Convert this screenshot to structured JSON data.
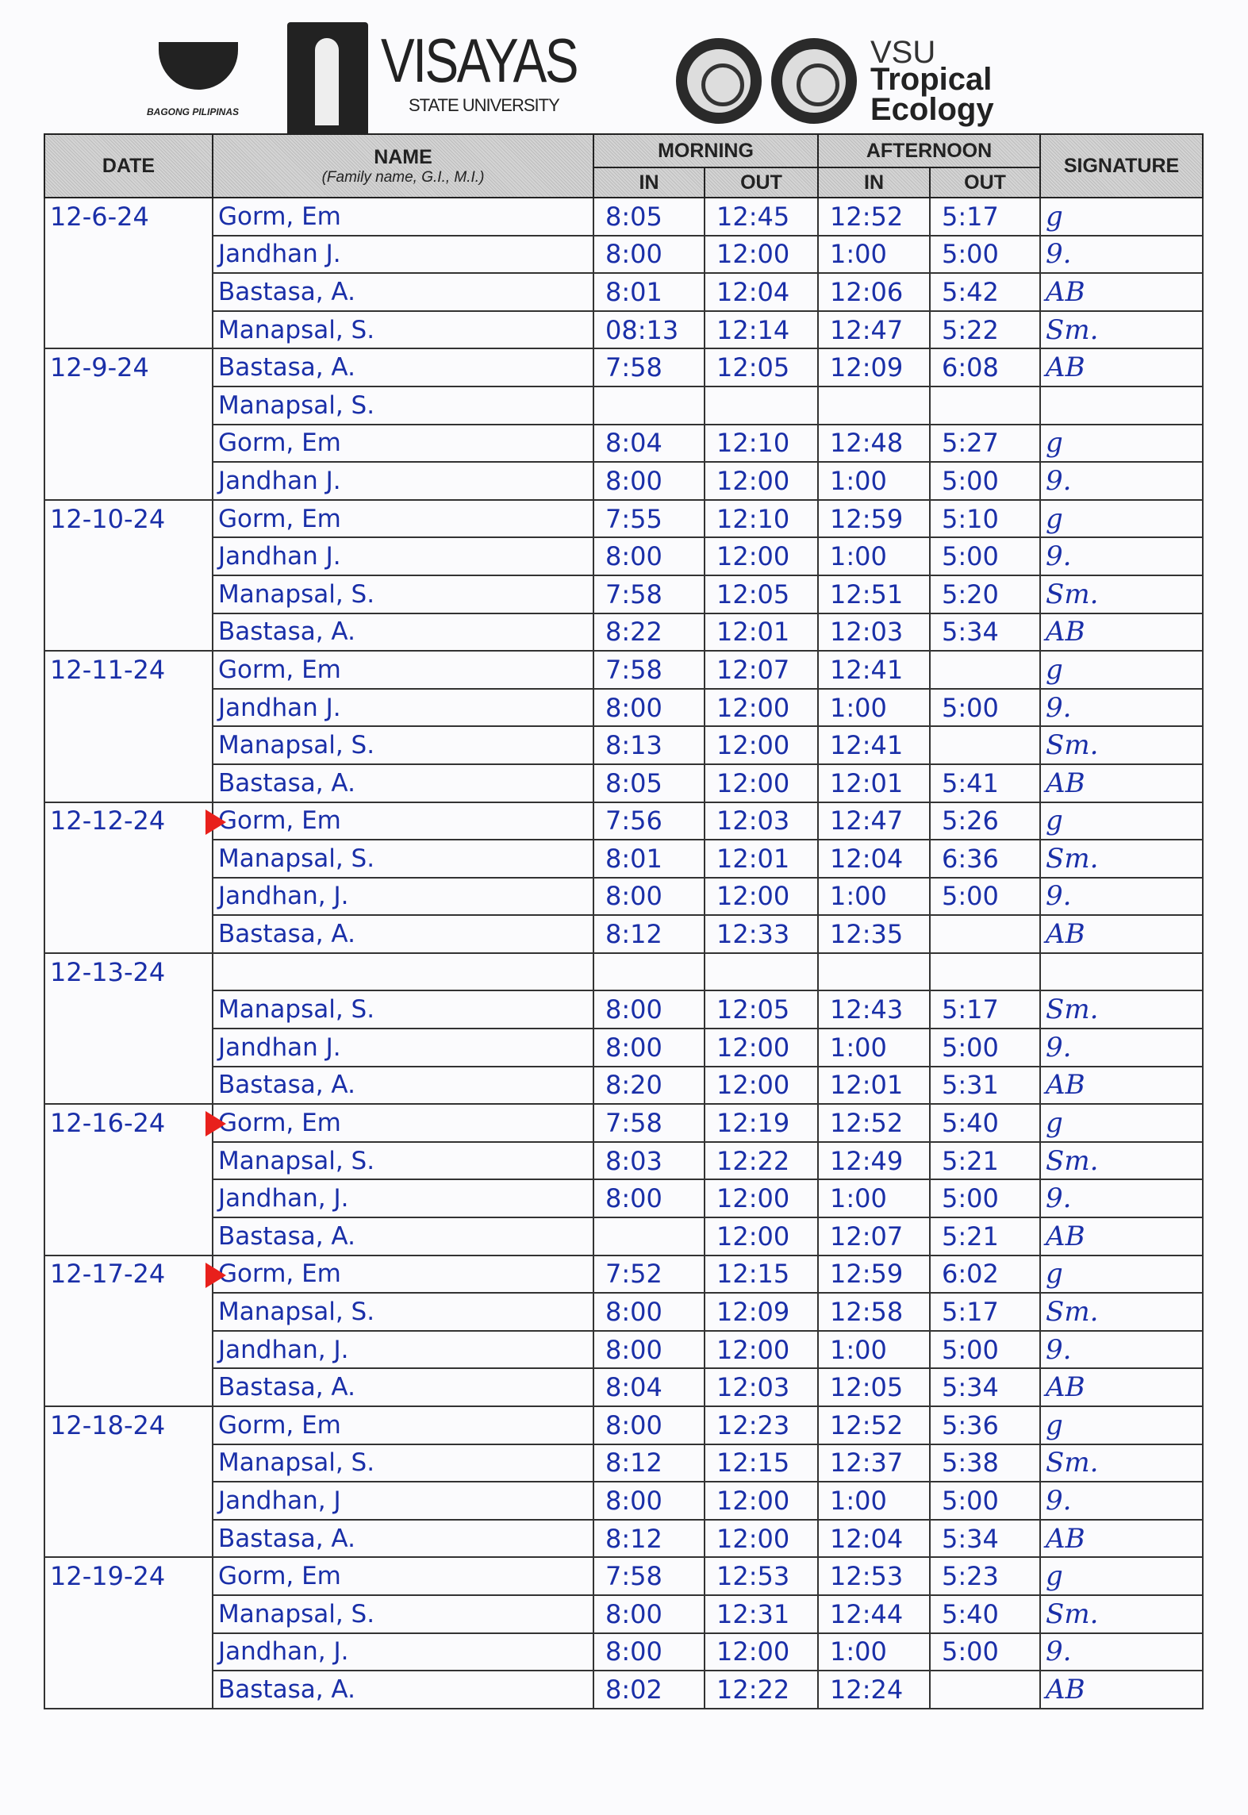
{
  "header": {
    "logo_left_text": "BAGONG PILIPINAS",
    "university_name": "VISAYAS",
    "university_sub": "STATE UNIVERSITY",
    "program_line1": "VSU",
    "program_line2": "Tropical",
    "program_line3": "Ecology"
  },
  "table": {
    "columns": {
      "date": "DATE",
      "name": "NAME",
      "name_sub": "(Family name, G.I., M.I.)",
      "morning": "MORNING",
      "afternoon": "AFTERNOON",
      "in": "IN",
      "out": "OUT",
      "signature": "SIGNATURE"
    },
    "marker_color": "#e8201c",
    "ink_color": "#1a2fa8",
    "rows": [
      {
        "date": "12-6-24",
        "name": "Gorm, Em",
        "am_in": "8:05",
        "am_out": "12:45",
        "pm_in": "12:52",
        "pm_out": "5:17",
        "sig": "g",
        "marked": false
      },
      {
        "date": "",
        "name": "Jandhan J.",
        "am_in": "8:00",
        "am_out": "12:00",
        "pm_in": "1:00",
        "pm_out": "5:00",
        "sig": "9."
      },
      {
        "date": "",
        "name": "Bastasa, A.",
        "am_in": "8:01",
        "am_out": "12:04",
        "pm_in": "12:06",
        "pm_out": "5:42",
        "sig": "AB"
      },
      {
        "date": "",
        "name": "Manapsal, S.",
        "am_in": "08:13",
        "am_out": "12:14",
        "pm_in": "12:47",
        "pm_out": "5:22",
        "sig": "Sm."
      },
      {
        "date": "12-9-24",
        "name": "Bastasa, A.",
        "am_in": "7:58",
        "am_out": "12:05",
        "pm_in": "12:09",
        "pm_out": "6:08",
        "sig": "AB"
      },
      {
        "date": "",
        "name": "Manapsal, S.",
        "am_in": "",
        "am_out": "",
        "pm_in": "",
        "pm_out": "",
        "sig": ""
      },
      {
        "date": "",
        "name": "Gorm, Em",
        "am_in": "8:04",
        "am_out": "12:10",
        "pm_in": "12:48",
        "pm_out": "5:27",
        "sig": "g"
      },
      {
        "date": "",
        "name": "Jandhan J.",
        "am_in": "8:00",
        "am_out": "12:00",
        "pm_in": "1:00",
        "pm_out": "5:00",
        "sig": "9."
      },
      {
        "date": "12-10-24",
        "name": "Gorm, Em",
        "am_in": "7:55",
        "am_out": "12:10",
        "pm_in": "12:59",
        "pm_out": "5:10",
        "sig": "g"
      },
      {
        "date": "",
        "name": "Jandhan J.",
        "am_in": "8:00",
        "am_out": "12:00",
        "pm_in": "1:00",
        "pm_out": "5:00",
        "sig": "9."
      },
      {
        "date": "",
        "name": "Manapsal, S.",
        "am_in": "7:58",
        "am_out": "12:05",
        "pm_in": "12:51",
        "pm_out": "5:20",
        "sig": "Sm."
      },
      {
        "date": "",
        "name": "Bastasa, A.",
        "am_in": "8:22",
        "am_out": "12:01",
        "pm_in": "12:03",
        "pm_out": "5:34",
        "sig": "AB"
      },
      {
        "date": "12-11-24",
        "name": "Gorm, Em",
        "am_in": "7:58",
        "am_out": "12:07",
        "pm_in": "12:41",
        "pm_out": "",
        "sig": "g"
      },
      {
        "date": "",
        "name": "Jandhan J.",
        "am_in": "8:00",
        "am_out": "12:00",
        "pm_in": "1:00",
        "pm_out": "5:00",
        "sig": "9."
      },
      {
        "date": "",
        "name": "Manapsal, S.",
        "am_in": "8:13",
        "am_out": "12:00",
        "pm_in": "12:41",
        "pm_out": "",
        "sig": "Sm."
      },
      {
        "date": "",
        "name": "Bastasa, A.",
        "am_in": "8:05",
        "am_out": "12:00",
        "pm_in": "12:01",
        "pm_out": "5:41",
        "sig": "AB"
      },
      {
        "date": "12-12-24",
        "name": "Gorm, Em",
        "am_in": "7:56",
        "am_out": "12:03",
        "pm_in": "12:47",
        "pm_out": "5:26",
        "sig": "g",
        "marked": true
      },
      {
        "date": "",
        "name": "Manapsal, S.",
        "am_in": "8:01",
        "am_out": "12:01",
        "pm_in": "12:04",
        "pm_out": "6:36",
        "sig": "Sm."
      },
      {
        "date": "",
        "name": "Jandhan, J.",
        "am_in": "8:00",
        "am_out": "12:00",
        "pm_in": "1:00",
        "pm_out": "5:00",
        "sig": "9."
      },
      {
        "date": "",
        "name": "Bastasa, A.",
        "am_in": "8:12",
        "am_out": "12:33",
        "pm_in": "12:35",
        "pm_out": "",
        "sig": "AB"
      },
      {
        "date": "12-13-24",
        "name": "",
        "am_in": "",
        "am_out": "",
        "pm_in": "",
        "pm_out": "",
        "sig": ""
      },
      {
        "date": "",
        "name": "Manapsal, S.",
        "am_in": "8:00",
        "am_out": "12:05",
        "pm_in": "12:43",
        "pm_out": "5:17",
        "sig": "Sm."
      },
      {
        "date": "",
        "name": "Jandhan J.",
        "am_in": "8:00",
        "am_out": "12:00",
        "pm_in": "1:00",
        "pm_out": "5:00",
        "sig": "9."
      },
      {
        "date": "",
        "name": "Bastasa, A.",
        "am_in": "8:20",
        "am_out": "12:00",
        "pm_in": "12:01",
        "pm_out": "5:31",
        "sig": "AB"
      },
      {
        "date": "12-16-24",
        "name": "Gorm, Em",
        "am_in": "7:58",
        "am_out": "12:19",
        "pm_in": "12:52",
        "pm_out": "5:40",
        "sig": "g",
        "marked": true
      },
      {
        "date": "",
        "name": "Manapsal, S.",
        "am_in": "8:03",
        "am_out": "12:22",
        "pm_in": "12:49",
        "pm_out": "5:21",
        "sig": "Sm."
      },
      {
        "date": "",
        "name": "Jandhan, J.",
        "am_in": "8:00",
        "am_out": "12:00",
        "pm_in": "1:00",
        "pm_out": "5:00",
        "sig": "9."
      },
      {
        "date": "",
        "name": "Bastasa, A.",
        "am_in": "",
        "am_out": "12:00",
        "pm_in": "12:07",
        "pm_out": "5:21",
        "sig": "AB"
      },
      {
        "date": "12-17-24",
        "name": "Gorm, Em",
        "am_in": "7:52",
        "am_out": "12:15",
        "pm_in": "12:59",
        "pm_out": "6:02",
        "sig": "g",
        "marked": true
      },
      {
        "date": "",
        "name": "Manapsal, S.",
        "am_in": "8:00",
        "am_out": "12:09",
        "pm_in": "12:58",
        "pm_out": "5:17",
        "sig": "Sm."
      },
      {
        "date": "",
        "name": "Jandhan, J.",
        "am_in": "8:00",
        "am_out": "12:00",
        "pm_in": "1:00",
        "pm_out": "5:00",
        "sig": "9."
      },
      {
        "date": "",
        "name": "Bastasa, A.",
        "am_in": "8:04",
        "am_out": "12:03",
        "pm_in": "12:05",
        "pm_out": "5:34",
        "sig": "AB"
      },
      {
        "date": "12-18-24",
        "name": "Gorm, Em",
        "am_in": "8:00",
        "am_out": "12:23",
        "pm_in": "12:52",
        "pm_out": "5:36",
        "sig": "g"
      },
      {
        "date": "",
        "name": "Manapsal, S.",
        "am_in": "8:12",
        "am_out": "12:15",
        "pm_in": "12:37",
        "pm_out": "5:38",
        "sig": "Sm."
      },
      {
        "date": "",
        "name": "Jandhan, J",
        "am_in": "8:00",
        "am_out": "12:00",
        "pm_in": "1:00",
        "pm_out": "5:00",
        "sig": "9."
      },
      {
        "date": "",
        "name": "Bastasa, A.",
        "am_in": "8:12",
        "am_out": "12:00",
        "pm_in": "12:04",
        "pm_out": "5:34",
        "sig": "AB"
      },
      {
        "date": "12-19-24",
        "name": "Gorm, Em",
        "am_in": "7:58",
        "am_out": "12:53",
        "pm_in": "12:53",
        "pm_out": "5:23",
        "sig": "g"
      },
      {
        "date": "",
        "name": "Manapsal, S.",
        "am_in": "8:00",
        "am_out": "12:31",
        "pm_in": "12:44",
        "pm_out": "5:40",
        "sig": "Sm."
      },
      {
        "date": "",
        "name": "Jandhan, J.",
        "am_in": "8:00",
        "am_out": "12:00",
        "pm_in": "1:00",
        "pm_out": "5:00",
        "sig": "9."
      },
      {
        "date": "",
        "name": "Bastasa, A.",
        "am_in": "8:02",
        "am_out": "12:22",
        "pm_in": "12:24",
        "pm_out": "",
        "sig": "AB"
      }
    ]
  }
}
